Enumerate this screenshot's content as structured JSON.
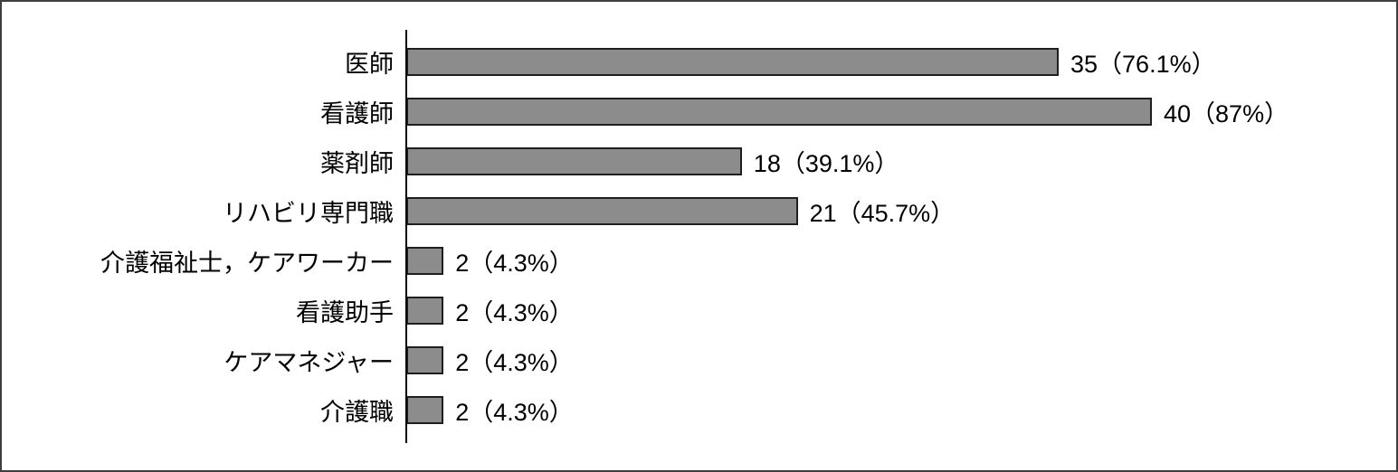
{
  "chart_data": {
    "type": "bar",
    "orientation": "horizontal",
    "title": "",
    "xlabel": "",
    "ylabel": "",
    "grid": false,
    "legend": null,
    "categories": [
      "医師",
      "看護師",
      "薬剤師",
      "リハビリ専門職",
      "介護福祉士，ケアワーカー",
      "看護助手",
      "ケアマネジャー",
      "介護職"
    ],
    "values": [
      35,
      40,
      18,
      21,
      2,
      2,
      2,
      2
    ],
    "percents": [
      76.1,
      87,
      39.1,
      45.7,
      4.3,
      4.3,
      4.3,
      4.3
    ],
    "value_labels": [
      "35（76.1%）",
      "40（87%）",
      "18（39.1%）",
      "21（45.7%）",
      "2（4.3%）",
      "2（4.3%）",
      "2（4.3%）",
      "2（4.3%）"
    ],
    "colors": {
      "bar_fill": "#8c8c8c",
      "bar_border": "#1f1f1f",
      "axis": "#000000",
      "text": "#000000",
      "frame_border": "#3f3f3f",
      "background": "#ffffff"
    }
  }
}
